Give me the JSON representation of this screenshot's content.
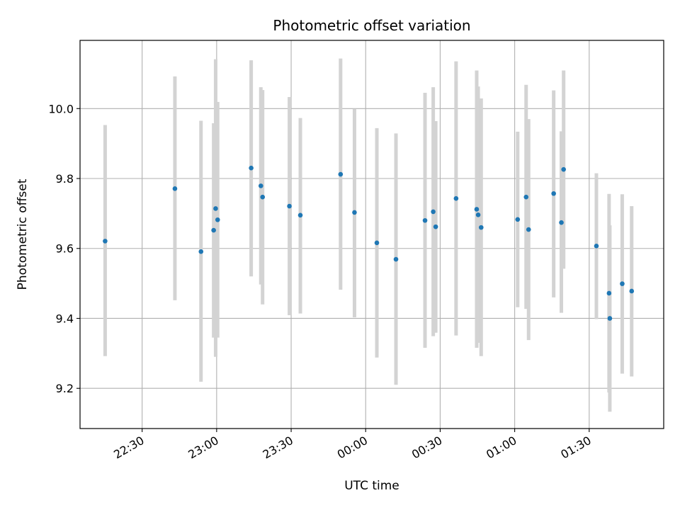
{
  "chart_data": {
    "type": "scatter",
    "title": "Photometric offset variation",
    "xlabel": "UTC time",
    "ylabel": "Photometric offset",
    "grid": true,
    "x_tick_labels": [
      "22:30",
      "23:00",
      "23:30",
      "00:00",
      "00:30",
      "01:00",
      "01:30"
    ],
    "y_tick_labels": [
      "9.2",
      "9.4",
      "9.6",
      "9.8",
      "10.0"
    ],
    "x_tick_minutes": [
      1350,
      1380,
      1410,
      1440,
      1470,
      1500,
      1530
    ],
    "y_ticks": [
      9.2,
      9.4,
      9.6,
      9.8,
      10.0
    ],
    "xlim_minutes": [
      1325,
      1560
    ],
    "ylim": [
      9.085,
      10.195
    ],
    "point_color": "#1f77b4",
    "errorbar_color": "#d3d3d3",
    "x_unit": "minutes since 00:00 UTC on first night",
    "series": [
      {
        "name": "offset",
        "points": [
          {
            "x_min": 1335.1,
            "y": 9.621,
            "ylo": 9.292,
            "yhi": 9.953
          },
          {
            "x_min": 1363.2,
            "y": 9.771,
            "ylo": 9.452,
            "yhi": 10.092
          },
          {
            "x_min": 1373.7,
            "y": 9.591,
            "ylo": 9.219,
            "yhi": 9.965
          },
          {
            "x_min": 1378.8,
            "y": 9.652,
            "ylo": 9.345,
            "yhi": 9.958
          },
          {
            "x_min": 1379.6,
            "y": 9.714,
            "ylo": 9.29,
            "yhi": 10.141
          },
          {
            "x_min": 1380.4,
            "y": 9.682,
            "ylo": 9.345,
            "yhi": 10.019
          },
          {
            "x_min": 1393.9,
            "y": 9.83,
            "ylo": 9.52,
            "yhi": 10.138
          },
          {
            "x_min": 1397.8,
            "y": 9.779,
            "ylo": 9.497,
            "yhi": 10.061
          },
          {
            "x_min": 1398.5,
            "y": 9.747,
            "ylo": 9.44,
            "yhi": 10.053
          },
          {
            "x_min": 1409.3,
            "y": 9.721,
            "ylo": 9.409,
            "yhi": 10.033
          },
          {
            "x_min": 1413.7,
            "y": 9.695,
            "ylo": 9.414,
            "yhi": 9.973
          },
          {
            "x_min": 1429.9,
            "y": 9.812,
            "ylo": 9.482,
            "yhi": 10.143
          },
          {
            "x_min": 1435.5,
            "y": 9.703,
            "ylo": 9.403,
            "yhi": 9.999
          },
          {
            "x_min": 1444.5,
            "y": 9.616,
            "ylo": 9.288,
            "yhi": 9.944
          },
          {
            "x_min": 1452.2,
            "y": 9.569,
            "ylo": 9.21,
            "yhi": 9.929
          },
          {
            "x_min": 1463.9,
            "y": 9.68,
            "ylo": 9.316,
            "yhi": 10.045
          },
          {
            "x_min": 1467.2,
            "y": 9.705,
            "ylo": 9.349,
            "yhi": 10.061
          },
          {
            "x_min": 1468.2,
            "y": 9.662,
            "ylo": 9.359,
            "yhi": 9.964
          },
          {
            "x_min": 1476.4,
            "y": 9.743,
            "ylo": 9.351,
            "yhi": 10.135
          },
          {
            "x_min": 1484.7,
            "y": 9.712,
            "ylo": 9.316,
            "yhi": 10.109
          },
          {
            "x_min": 1485.3,
            "y": 9.696,
            "ylo": 9.33,
            "yhi": 10.063
          },
          {
            "x_min": 1486.5,
            "y": 9.66,
            "ylo": 9.292,
            "yhi": 10.029
          },
          {
            "x_min": 1501.2,
            "y": 9.683,
            "ylo": 9.432,
            "yhi": 9.934
          },
          {
            "x_min": 1504.6,
            "y": 9.747,
            "ylo": 9.427,
            "yhi": 10.068
          },
          {
            "x_min": 1505.6,
            "y": 9.654,
            "ylo": 9.338,
            "yhi": 9.97
          },
          {
            "x_min": 1515.7,
            "y": 9.757,
            "ylo": 9.46,
            "yhi": 10.052
          },
          {
            "x_min": 1518.8,
            "y": 9.674,
            "ylo": 9.416,
            "yhi": 9.935
          },
          {
            "x_min": 1519.7,
            "y": 9.826,
            "ylo": 9.542,
            "yhi": 10.109
          },
          {
            "x_min": 1532.9,
            "y": 9.607,
            "ylo": 9.398,
            "yhi": 9.815
          },
          {
            "x_min": 1538.0,
            "y": 9.472,
            "ylo": 9.188,
            "yhi": 9.756
          },
          {
            "x_min": 1538.3,
            "y": 9.4,
            "ylo": 9.133,
            "yhi": 9.666
          },
          {
            "x_min": 1543.3,
            "y": 9.499,
            "ylo": 9.242,
            "yhi": 9.755
          },
          {
            "x_min": 1547.1,
            "y": 9.478,
            "ylo": 9.234,
            "yhi": 9.721
          }
        ]
      }
    ]
  }
}
